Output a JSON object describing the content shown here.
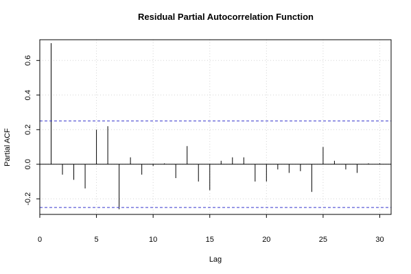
{
  "chart_data": {
    "type": "bar",
    "title": "Residual Partial Autocorrelation Function",
    "xlabel": "Lag",
    "ylabel": "Partial ACF",
    "xlim": [
      0,
      31
    ],
    "ylim": [
      -0.29,
      0.72
    ],
    "x_ticks": [
      0,
      5,
      10,
      15,
      20,
      25,
      30
    ],
    "x_tick_labels": [
      "0",
      "5",
      "10",
      "15",
      "20",
      "25",
      "30"
    ],
    "y_ticks": [
      -0.2,
      0.0,
      0.2,
      0.4,
      0.6
    ],
    "y_tick_labels": [
      "-0.2",
      "0.0",
      "0.2",
      "0.4",
      "0.6"
    ],
    "grid": true,
    "confidence_band": [
      0.25,
      -0.25
    ],
    "colors": {
      "bars": "#000000",
      "band": "#3333cc",
      "grid": "#d3d3d3",
      "frame": "#000000"
    },
    "lags": [
      1,
      2,
      3,
      4,
      5,
      6,
      7,
      8,
      9,
      10,
      11,
      12,
      13,
      14,
      15,
      16,
      17,
      18,
      19,
      20,
      21,
      22,
      23,
      24,
      25,
      26,
      27,
      28,
      29,
      30
    ],
    "values": [
      0.7,
      -0.06,
      -0.09,
      -0.14,
      0.2,
      0.22,
      -0.26,
      0.04,
      -0.06,
      -0.01,
      0.005,
      -0.08,
      0.105,
      -0.1,
      -0.15,
      0.02,
      0.04,
      0.04,
      -0.1,
      -0.1,
      -0.03,
      -0.05,
      -0.04,
      -0.16,
      0.1,
      0.02,
      -0.03,
      -0.05,
      0.005,
      0.005
    ]
  }
}
